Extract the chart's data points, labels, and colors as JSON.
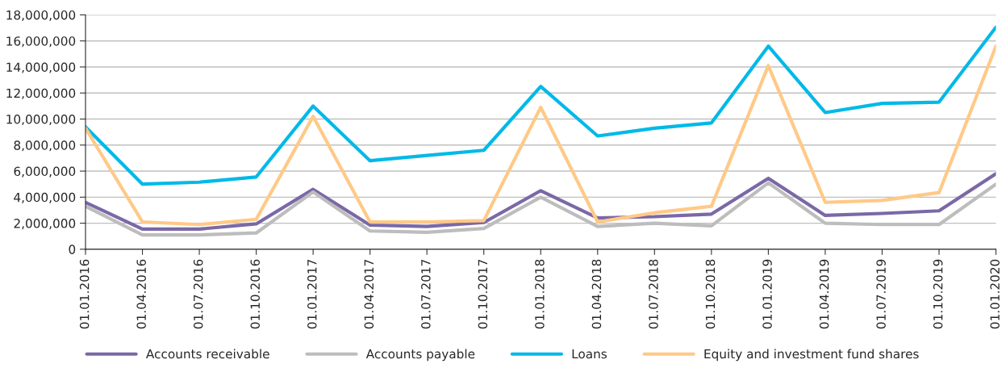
{
  "chart_data": {
    "type": "line",
    "categories": [
      "01.01.2016",
      "01.04.2016",
      "01.07.2016",
      "01.10.2016",
      "01.01.2017",
      "01.04.2017",
      "01.07.2017",
      "01.10.2017",
      "01.01.2018",
      "01.04.2018",
      "01.07.2018",
      "01.10.2018",
      "01.01.2019",
      "01.04.2019",
      "01.07.2019",
      "01.10.2019",
      "01.01.2020"
    ],
    "series": [
      {
        "name": "Accounts receivable",
        "color": "#7b68a6",
        "values": [
          3600000,
          1550000,
          1550000,
          1950000,
          4600000,
          1850000,
          1750000,
          2050000,
          4500000,
          2400000,
          2500000,
          2700000,
          5450000,
          2600000,
          2750000,
          2950000,
          5800000
        ]
      },
      {
        "name": "Accounts payable",
        "color": "#bdbdbd",
        "values": [
          3300000,
          1100000,
          1100000,
          1250000,
          4400000,
          1400000,
          1300000,
          1600000,
          4000000,
          1750000,
          2000000,
          1800000,
          5100000,
          2000000,
          1900000,
          1900000,
          5000000
        ]
      },
      {
        "name": "Loans",
        "color": "#00b9e8",
        "values": [
          9400000,
          5000000,
          5150000,
          5550000,
          11000000,
          6800000,
          7200000,
          7600000,
          12500000,
          8700000,
          9300000,
          9700000,
          15600000,
          10500000,
          11200000,
          11300000,
          17050000
        ]
      },
      {
        "name": "Equity and investment fund shares",
        "color": "#ffc987",
        "values": [
          9300000,
          2100000,
          1900000,
          2300000,
          10200000,
          2100000,
          2100000,
          2200000,
          10900000,
          2100000,
          2800000,
          3300000,
          14100000,
          3600000,
          3750000,
          4350000,
          15600000
        ]
      }
    ],
    "ylim": [
      0,
      18000000
    ],
    "yticks": [
      0,
      {
        "value": 2000000,
        "label": "2,000,000"
      },
      {
        "value": 4000000,
        "label": "4,000,000"
      },
      {
        "value": 6000000,
        "label": "6,000,000"
      },
      {
        "value": 8000000,
        "label": "8,000,000"
      },
      {
        "value": 10000000,
        "label": "10,000,000"
      },
      {
        "value": 12000000,
        "label": "12,000,000"
      },
      {
        "value": 14000000,
        "label": "14,000,000"
      },
      {
        "value": 16000000,
        "label": "16,000,000"
      },
      {
        "value": 18000000,
        "label": "18,000,000"
      }
    ],
    "grid": "y",
    "legend": "bottom",
    "marker": "none",
    "line_style": "solid"
  }
}
